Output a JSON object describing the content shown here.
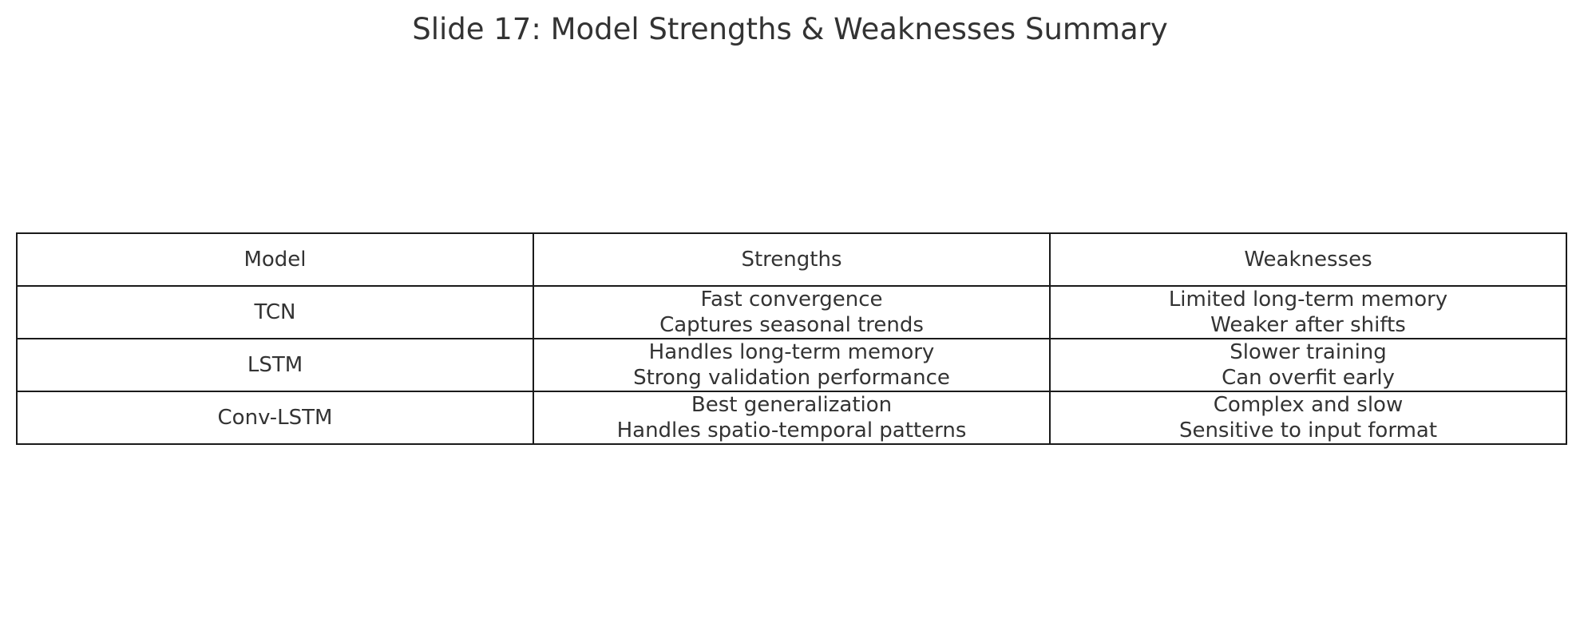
{
  "chart_data": {
    "type": "table",
    "title": "Slide 17: Model Strengths & Weaknesses Summary",
    "columns": [
      "Model",
      "Strengths",
      "Weaknesses"
    ],
    "rows": [
      {
        "model": "TCN",
        "strengths": [
          "Fast convergence",
          "Captures seasonal trends"
        ],
        "weaknesses": [
          "Limited long-term memory",
          "Weaker after shifts"
        ]
      },
      {
        "model": "LSTM",
        "strengths": [
          "Handles long-term memory",
          "Strong validation performance"
        ],
        "weaknesses": [
          "Slower training",
          "Can overfit early"
        ]
      },
      {
        "model": "Conv-LSTM",
        "strengths": [
          "Best generalization",
          "Handles spatio-temporal patterns"
        ],
        "weaknesses": [
          "Complex and slow",
          "Sensitive to input format"
        ]
      }
    ]
  },
  "colors": {
    "text": "#333333",
    "border": "#1a1a1a",
    "background": "#ffffff"
  }
}
